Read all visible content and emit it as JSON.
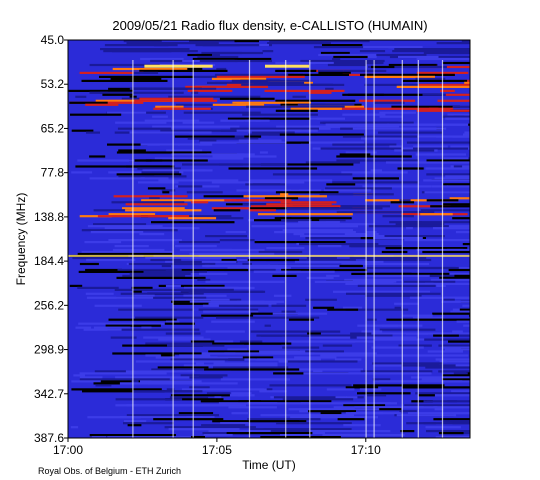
{
  "chart_data": {
    "type": "heatmap",
    "title": "2009/05/21  Radio flux density, e-CALLISTO (HUMAIN)",
    "xlabel": "Time (UT)",
    "ylabel": "Frequency (MHz)",
    "x_ticks": [
      "17:00",
      "17:05",
      "17:10"
    ],
    "y_ticks": [
      "45.0",
      "53.2",
      "65.2",
      "77.8",
      "138.8",
      "184.4",
      "256.2",
      "298.9",
      "342.7",
      "387.6"
    ],
    "credit": "Royal Obs. of Belgium - ETH Zurich",
    "colormap": [
      "#000000",
      "#1a1a9a",
      "#2424d0",
      "#3c3ce8",
      "#d42020",
      "#ff7a10",
      "#ffe060",
      "#ffffff"
    ],
    "background_color": "#2b2bd8",
    "grid": false,
    "legend": "none"
  }
}
